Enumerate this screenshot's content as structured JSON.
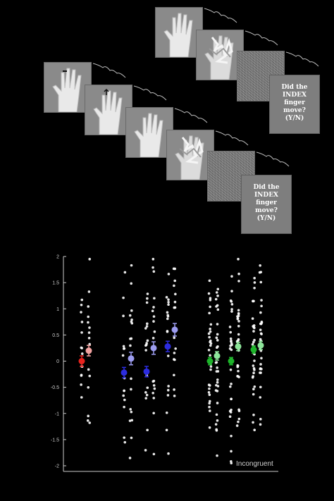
{
  "stimuli": {
    "question_line1": "Did the",
    "question_line2": "INDEX",
    "question_line3": "finger",
    "question_line4": "move?",
    "question_line5": "(Y/N)"
  },
  "chart_data": {
    "type": "scatter",
    "ylim": [
      -2,
      2
    ],
    "yticks": [
      "2",
      "1.5",
      "1",
      "0.5",
      "0",
      "-0.5",
      "-1",
      "-1.5",
      "-2"
    ],
    "condition_label": "Incongruent",
    "colors": {
      "red_mean": "#e8231e",
      "red_light": "#f2a2a0",
      "blue_mean": "#2c2ce0",
      "blue_light": "#9c9cf0",
      "green_mean": "#1db52a",
      "green_light": "#8de69a",
      "dots": "#ffffff"
    },
    "groups": [
      {
        "color": "red",
        "mean": 0.0,
        "err": 0.1,
        "shade": "dark"
      },
      {
        "color": "red",
        "mean": 0.2,
        "err": 0.1,
        "shade": "light"
      },
      {
        "color": "blue",
        "mean": -0.22,
        "err": 0.1,
        "shade": "dark"
      },
      {
        "color": "blue",
        "mean": 0.05,
        "err": 0.12,
        "shade": "light"
      },
      {
        "color": "blue",
        "mean": -0.2,
        "err": 0.1,
        "shade": "dark"
      },
      {
        "color": "blue",
        "mean": 0.25,
        "err": 0.12,
        "shade": "light"
      },
      {
        "color": "blue",
        "mean": 0.28,
        "err": 0.1,
        "shade": "dark"
      },
      {
        "color": "blue",
        "mean": 0.6,
        "err": 0.12,
        "shade": "light"
      },
      {
        "color": "green",
        "mean": 0.0,
        "err": 0.07,
        "shade": "dark"
      },
      {
        "color": "green",
        "mean": 0.1,
        "err": 0.08,
        "shade": "light"
      },
      {
        "color": "green",
        "mean": 0.0,
        "err": 0.07,
        "shade": "dark"
      },
      {
        "color": "green",
        "mean": 0.28,
        "err": 0.08,
        "shade": "light"
      },
      {
        "color": "green",
        "mean": 0.22,
        "err": 0.07,
        "shade": "dark"
      },
      {
        "color": "green",
        "mean": 0.3,
        "err": 0.08,
        "shade": "light"
      }
    ]
  }
}
